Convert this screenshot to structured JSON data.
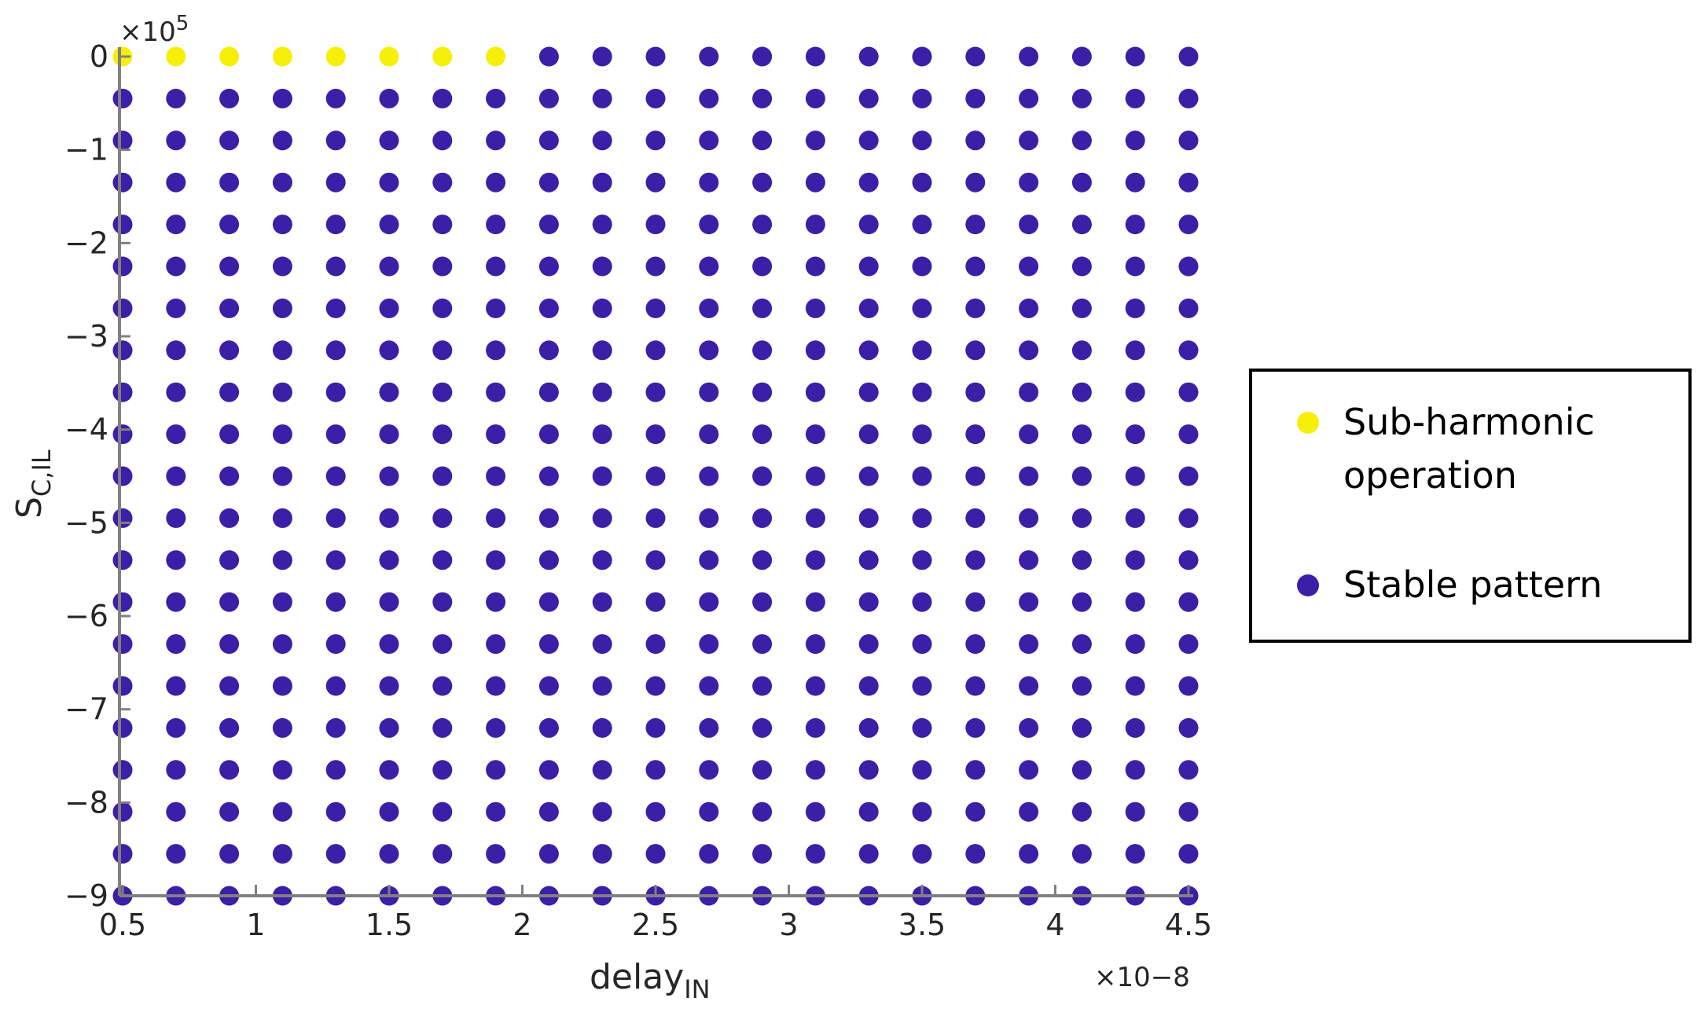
{
  "chart_data": {
    "type": "scatter",
    "title": "",
    "xlabel": "delay",
    "xlabel_sub": "IN",
    "ylabel": "S",
    "ylabel_sub": "C,IL",
    "x_exponent": "×10−8",
    "y_exponent": "×10",
    "y_exponent_power": "5",
    "xlim": [
      0.5,
      4.5
    ],
    "ylim": [
      -9,
      0
    ],
    "x_ticks": [
      "0.5",
      "1",
      "1.5",
      "2",
      "2.5",
      "3",
      "3.5",
      "4",
      "4.5"
    ],
    "y_ticks": [
      "0",
      "−1",
      "−2",
      "−3",
      "−4",
      "−5",
      "−6",
      "−7",
      "−8",
      "−9"
    ],
    "grid": false,
    "legend_position": "right",
    "x": [
      0.5,
      0.7,
      0.9,
      1.1,
      1.3,
      1.5,
      1.7,
      1.9,
      2.1,
      2.3,
      2.5,
      2.7,
      2.9,
      3.1,
      3.3,
      3.5,
      3.7,
      3.9,
      4.1,
      4.3,
      4.5
    ],
    "y": [
      0,
      -0.45,
      -0.9,
      -1.35,
      -1.8,
      -2.25,
      -2.7,
      -3.15,
      -3.6,
      -4.05,
      -4.5,
      -4.95,
      -5.4,
      -5.85,
      -6.3,
      -6.75,
      -7.2,
      -7.65,
      -8.1,
      -8.55,
      -9
    ],
    "series": [
      {
        "name": "Sub-harmonic operation",
        "legend_lines": [
          "Sub-harmonic",
          "operation"
        ],
        "color": "#f5ef0a",
        "points": "all x with x < 2 at y = 0"
      },
      {
        "name": "Stable pattern",
        "legend_lines": [
          "Stable pattern"
        ],
        "color": "#3b1fa6",
        "points": "all remaining grid points"
      }
    ]
  }
}
